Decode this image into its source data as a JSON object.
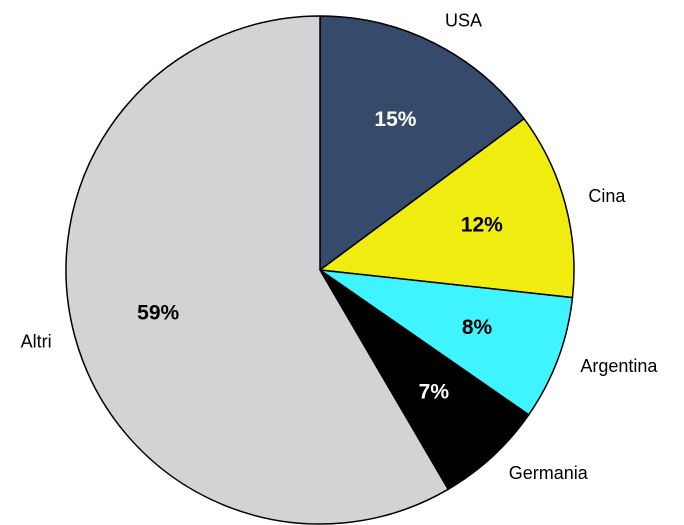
{
  "chart_data": {
    "type": "pie",
    "categories": [
      "USA",
      "Cina",
      "Argentina",
      "Germania",
      "Altri"
    ],
    "values": [
      15,
      12,
      8,
      7,
      59
    ],
    "value_labels": [
      "15%",
      "12%",
      "8%",
      "7%",
      "59%"
    ],
    "colors": [
      "#364a6b",
      "#f0ec10",
      "#40f4ff",
      "#000000",
      "#d3d3d6"
    ]
  }
}
